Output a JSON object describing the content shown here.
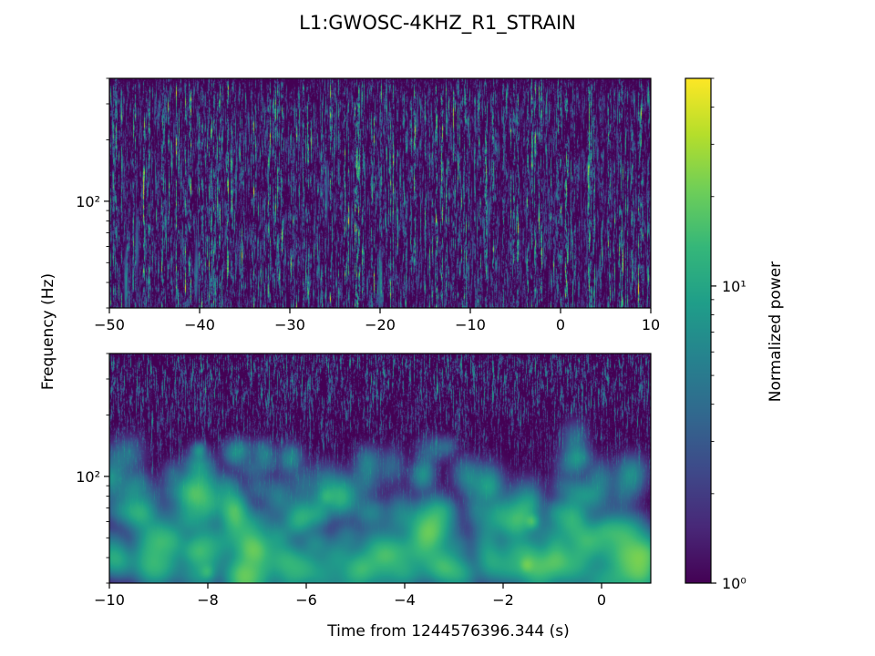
{
  "figure": {
    "title": "L1:GWOSC-4KHZ_R1_STRAIN",
    "ylabel": "Frequency (Hz)",
    "xlabel": "Time from 1244576396.344 (s)",
    "colorbar_label": "Normalized power"
  },
  "chart_data": [
    {
      "type": "heatmap",
      "panel": "top",
      "xlim": [
        -50,
        10
      ],
      "x_ticks": [
        -50,
        -40,
        -30,
        -20,
        -10,
        0,
        10
      ],
      "x_tick_labels": [
        "−50",
        "−40",
        "−30",
        "−20",
        "−10",
        "0",
        "10"
      ],
      "y_scale": "log",
      "ylim": [
        30,
        400
      ],
      "y_ticks": [
        100
      ],
      "y_tick_labels": [
        "10²"
      ],
      "colormap": "viridis",
      "texture": "dense thin vertical streaks of low normalized power (mostly 1–3) with scattered brighter streaks, a few near -48 s and -20 s at low frequency"
    },
    {
      "type": "heatmap",
      "panel": "bottom",
      "xlim": [
        -10,
        1
      ],
      "x_ticks": [
        -10,
        -8,
        -6,
        -4,
        -2,
        0
      ],
      "x_tick_labels": [
        "−10",
        "−8",
        "−6",
        "−4",
        "−2",
        "0"
      ],
      "y_scale": "log",
      "ylim": [
        30,
        400
      ],
      "y_ticks": [
        100
      ],
      "y_tick_labels": [
        "10²"
      ],
      "colormap": "viridis",
      "texture": "thin vertical streaks at high frequency becoming broad blobs at low frequency; peak normalized power roughly 10–15 near -1.5 s and -8.2 s"
    }
  ],
  "colorbar": {
    "scale": "log",
    "range": [
      1,
      50
    ],
    "colormap": "viridis",
    "ticks": [
      1,
      10
    ],
    "major_labels": [
      "10⁰",
      "10¹"
    ],
    "colors": [
      "#440154",
      "#482878",
      "#3e4989",
      "#31688e",
      "#26828e",
      "#1f9e89",
      "#35b779",
      "#6ece58",
      "#b5de2b",
      "#fde725"
    ]
  }
}
